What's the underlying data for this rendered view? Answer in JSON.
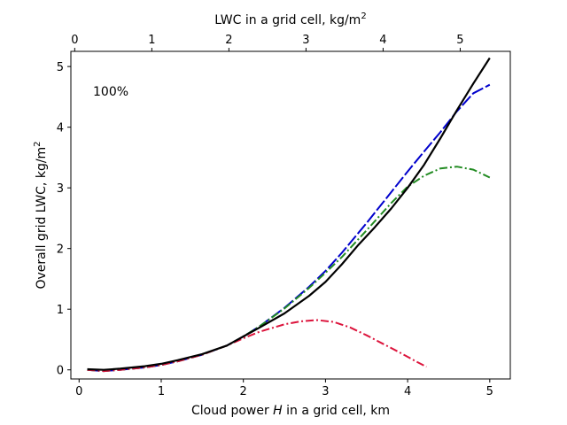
{
  "chart_data": {
    "type": "line",
    "xlabel": "Cloud power H in a grid cell, km",
    "xlabel_parts": {
      "before": "Cloud power ",
      "italic": "H",
      "after": " in a grid cell, km"
    },
    "ylabel": "Overall grid LWC, kg/m²",
    "ylabel_parts": {
      "base": "Overall grid LWC, kg/m",
      "sup": "2"
    },
    "top_xlabel": "LWC in a grid cell, kg/m²",
    "top_xlabel_parts": {
      "base": "LWC in a grid cell, kg/m",
      "sup": "2"
    },
    "annotation": "100%",
    "xlim": [
      -0.1,
      5.25
    ],
    "ylim": [
      -0.15,
      5.25
    ],
    "xticks": [
      0,
      1,
      2,
      3,
      4,
      5
    ],
    "yticks": [
      0,
      1,
      2,
      3,
      4,
      5
    ],
    "top_xlim": [
      -0.05,
      5.65
    ],
    "top_xticks": [
      0,
      1,
      2,
      3,
      4,
      5
    ],
    "legend": "none",
    "grid": false,
    "series": [
      {
        "color": "#0000cc",
        "style": "dashed",
        "x": [
          0.1,
          0.3,
          0.5,
          0.8,
          1.0,
          1.2,
          1.5,
          1.8,
          2.0,
          2.2,
          2.5,
          2.8,
          3.0,
          3.2,
          3.5,
          3.8,
          4.0,
          4.2,
          4.4,
          4.6,
          4.8,
          5.0
        ],
        "y": [
          0.0,
          -0.02,
          0.0,
          0.04,
          0.08,
          0.14,
          0.25,
          0.4,
          0.55,
          0.72,
          1.02,
          1.37,
          1.63,
          1.93,
          2.42,
          2.93,
          3.27,
          3.6,
          3.92,
          4.26,
          4.56,
          4.7
        ]
      },
      {
        "color": "#228b22",
        "style": "dashdot",
        "x": [
          0.1,
          0.3,
          0.5,
          0.8,
          1.0,
          1.2,
          1.5,
          1.8,
          2.0,
          2.2,
          2.5,
          2.8,
          3.0,
          3.2,
          3.5,
          3.8,
          4.0,
          4.2,
          4.4,
          4.6,
          4.8,
          5.0
        ],
        "y": [
          0.0,
          -0.02,
          0.0,
          0.04,
          0.08,
          0.14,
          0.25,
          0.4,
          0.55,
          0.72,
          1.01,
          1.35,
          1.6,
          1.86,
          2.3,
          2.75,
          3.02,
          3.2,
          3.32,
          3.35,
          3.3,
          3.17
        ]
      },
      {
        "color": "#dc143c",
        "style": "dashdot",
        "x": [
          0.1,
          0.3,
          0.5,
          0.8,
          1.0,
          1.2,
          1.5,
          1.8,
          2.0,
          2.2,
          2.5,
          2.7,
          2.9,
          3.1,
          3.3,
          3.5,
          3.7,
          3.9,
          4.1,
          4.23
        ],
        "y": [
          0.0,
          -0.02,
          0.0,
          0.04,
          0.08,
          0.14,
          0.25,
          0.4,
          0.52,
          0.63,
          0.75,
          0.8,
          0.82,
          0.79,
          0.7,
          0.57,
          0.43,
          0.29,
          0.14,
          0.05
        ]
      },
      {
        "color": "#000000",
        "style": "solid",
        "x": [
          0.1,
          0.3,
          0.5,
          0.8,
          1.0,
          1.2,
          1.5,
          1.8,
          2.0,
          2.2,
          2.5,
          2.8,
          3.0,
          3.2,
          3.4,
          3.6,
          3.8,
          4.0,
          4.2,
          4.4,
          4.6,
          4.8,
          5.0
        ],
        "y": [
          0.01,
          0.0,
          0.02,
          0.06,
          0.1,
          0.16,
          0.26,
          0.4,
          0.55,
          0.7,
          0.93,
          1.22,
          1.45,
          1.74,
          2.06,
          2.35,
          2.66,
          3.0,
          3.38,
          3.82,
          4.28,
          4.72,
          5.14
        ]
      }
    ]
  }
}
